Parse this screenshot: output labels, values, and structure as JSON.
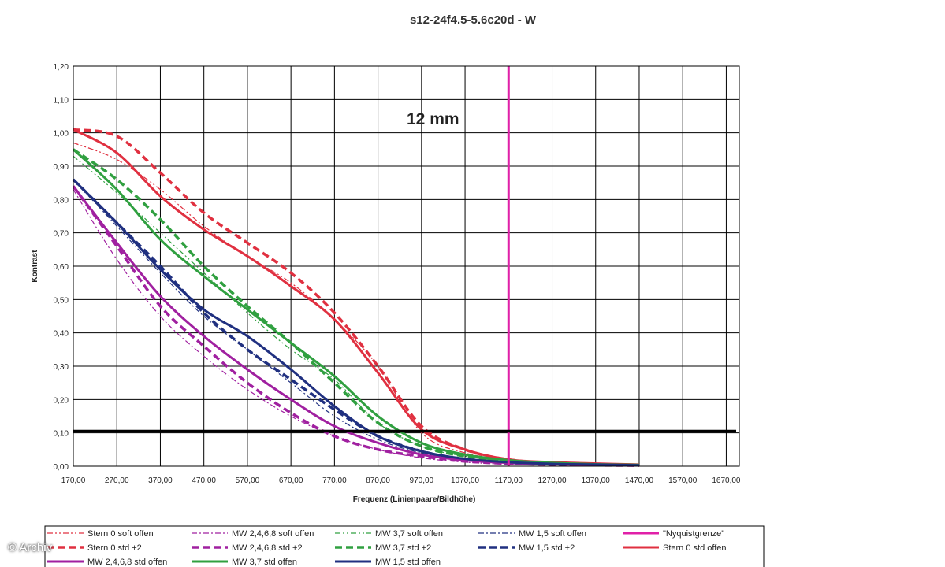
{
  "chart_data": {
    "type": "line",
    "title": "s12-24f4.5-5.6c20d - W",
    "xlabel": "Frequenz (Linienpaare/Bildhöhe)",
    "ylabel": "Kontrast",
    "annotation": "12 mm",
    "xlim": [
      170,
      1700
    ],
    "ylim": [
      0,
      1.2
    ],
    "x_ticks": [
      "170,00",
      "270,00",
      "370,00",
      "470,00",
      "570,00",
      "670,00",
      "770,00",
      "870,00",
      "970,00",
      "1070,00",
      "1170,00",
      "1270,00",
      "1370,00",
      "1470,00",
      "1570,00",
      "1670,00"
    ],
    "y_ticks": [
      "0,00",
      "0,10",
      "0,20",
      "0,30",
      "0,40",
      "0,50",
      "0,60",
      "0,70",
      "0,80",
      "0,90",
      "1,00",
      "1,10",
      "1,20"
    ],
    "grid": true,
    "legend_position": "bottom",
    "reference_lines": [
      {
        "type": "horizontal",
        "y": 0.105,
        "color": "#000000"
      },
      {
        "type": "vertical",
        "name": "\"Nyquistgrenze\"",
        "x": 1170,
        "color": "#e020a8"
      }
    ],
    "series": [
      {
        "name": "Stern 0 soft offen",
        "color": "#e03040",
        "style": "dashdotdot",
        "width": 1.2,
        "x": [
          170,
          270,
          370,
          470,
          570,
          670,
          770,
          870,
          970,
          1070,
          1170,
          1270,
          1370,
          1470
        ],
        "y": [
          0.97,
          0.92,
          0.83,
          0.72,
          0.63,
          0.55,
          0.44,
          0.3,
          0.1,
          0.04,
          0.02,
          0.01,
          0.006,
          0.004
        ]
      },
      {
        "name": "MW 2,4,6,8 soft offen",
        "color": "#a020a0",
        "style": "dashdot",
        "width": 1.2,
        "x": [
          170,
          270,
          370,
          470,
          570,
          670,
          770,
          870,
          970,
          1070,
          1170,
          1270,
          1370,
          1470
        ],
        "y": [
          0.83,
          0.62,
          0.45,
          0.33,
          0.23,
          0.15,
          0.09,
          0.05,
          0.025,
          0.012,
          0.006,
          0.004,
          0.003,
          0.002
        ]
      },
      {
        "name": "MW 3,7 soft offen",
        "color": "#30a040",
        "style": "dashdotdot",
        "width": 1.2,
        "x": [
          170,
          270,
          370,
          470,
          570,
          670,
          770,
          870,
          970,
          1070,
          1170,
          1270,
          1370,
          1470
        ],
        "y": [
          0.93,
          0.82,
          0.7,
          0.58,
          0.46,
          0.35,
          0.26,
          0.13,
          0.06,
          0.03,
          0.015,
          0.01,
          0.006,
          0.004
        ]
      },
      {
        "name": "MW 1,5 soft offen",
        "color": "#203080",
        "style": "dashdot",
        "width": 1.2,
        "x": [
          170,
          270,
          370,
          470,
          570,
          670,
          770,
          870,
          970,
          1070,
          1170,
          1270,
          1370,
          1470
        ],
        "y": [
          0.86,
          0.72,
          0.58,
          0.45,
          0.35,
          0.25,
          0.15,
          0.08,
          0.04,
          0.02,
          0.01,
          0.006,
          0.004,
          0.003
        ]
      },
      {
        "name": "\"Nyquistgrenze\"",
        "color": "#e020a8",
        "style": "solid",
        "width": 3,
        "x": [
          1170,
          1170
        ],
        "y": [
          0,
          1.2
        ]
      },
      {
        "name": "Stern 0 std +2",
        "color": "#e03040",
        "style": "dashed",
        "width": 3.5,
        "x": [
          170,
          270,
          370,
          470,
          570,
          670,
          770,
          870,
          970,
          1070,
          1170,
          1270,
          1370,
          1470
        ],
        "y": [
          1.01,
          0.99,
          0.88,
          0.76,
          0.67,
          0.58,
          0.46,
          0.3,
          0.12,
          0.05,
          0.02,
          0.01,
          0.006,
          0.004
        ]
      },
      {
        "name": "MW 2,4,6,8 std +2",
        "color": "#a020a0",
        "style": "dashed",
        "width": 3.5,
        "x": [
          170,
          270,
          370,
          470,
          570,
          670,
          770,
          870,
          970,
          1070,
          1170,
          1270,
          1370,
          1470
        ],
        "y": [
          0.84,
          0.66,
          0.48,
          0.36,
          0.25,
          0.16,
          0.09,
          0.05,
          0.03,
          0.015,
          0.008,
          0.005,
          0.003,
          0.002
        ]
      },
      {
        "name": "MW 3,7 std +2",
        "color": "#30a040",
        "style": "dashed",
        "width": 3.5,
        "x": [
          170,
          270,
          370,
          470,
          570,
          670,
          770,
          870,
          970,
          1070,
          1170,
          1270,
          1370,
          1470
        ],
        "y": [
          0.95,
          0.86,
          0.74,
          0.6,
          0.48,
          0.37,
          0.25,
          0.13,
          0.06,
          0.03,
          0.015,
          0.01,
          0.006,
          0.004
        ]
      },
      {
        "name": "MW 1,5 std +2",
        "color": "#203080",
        "style": "dashed",
        "width": 3.5,
        "x": [
          170,
          270,
          370,
          470,
          570,
          670,
          770,
          870,
          970,
          1070,
          1170,
          1270,
          1370,
          1470
        ],
        "y": [
          0.86,
          0.73,
          0.6,
          0.46,
          0.35,
          0.26,
          0.17,
          0.09,
          0.045,
          0.02,
          0.01,
          0.006,
          0.004,
          0.003
        ]
      },
      {
        "name": "Stern 0 std offen",
        "color": "#e03040",
        "style": "solid",
        "width": 3,
        "x": [
          170,
          270,
          370,
          470,
          570,
          670,
          770,
          870,
          970,
          1070,
          1170,
          1270,
          1370,
          1470
        ],
        "y": [
          1.01,
          0.94,
          0.81,
          0.71,
          0.63,
          0.54,
          0.44,
          0.28,
          0.11,
          0.05,
          0.02,
          0.012,
          0.008,
          0.005
        ]
      },
      {
        "name": "MW 2,4,6,8 std offen",
        "color": "#a020a0",
        "style": "solid",
        "width": 3,
        "x": [
          170,
          270,
          370,
          470,
          570,
          670,
          770,
          870,
          970,
          1070,
          1170,
          1270,
          1370,
          1470
        ],
        "y": [
          0.84,
          0.67,
          0.51,
          0.39,
          0.29,
          0.2,
          0.12,
          0.07,
          0.035,
          0.018,
          0.01,
          0.006,
          0.004,
          0.003
        ]
      },
      {
        "name": "MW 3,7 std offen",
        "color": "#30a040",
        "style": "solid",
        "width": 3,
        "x": [
          170,
          270,
          370,
          470,
          570,
          670,
          770,
          870,
          970,
          1070,
          1170,
          1270,
          1370,
          1470
        ],
        "y": [
          0.95,
          0.83,
          0.68,
          0.57,
          0.47,
          0.37,
          0.27,
          0.15,
          0.07,
          0.035,
          0.018,
          0.01,
          0.006,
          0.004
        ]
      },
      {
        "name": "MW 1,5 std offen",
        "color": "#203080",
        "style": "solid",
        "width": 3,
        "x": [
          170,
          270,
          370,
          470,
          570,
          670,
          770,
          870,
          970,
          1070,
          1170,
          1270,
          1370,
          1470
        ],
        "y": [
          0.86,
          0.73,
          0.59,
          0.47,
          0.39,
          0.29,
          0.18,
          0.09,
          0.045,
          0.022,
          0.012,
          0.007,
          0.005,
          0.003
        ]
      }
    ]
  },
  "watermark": "© Archiv"
}
